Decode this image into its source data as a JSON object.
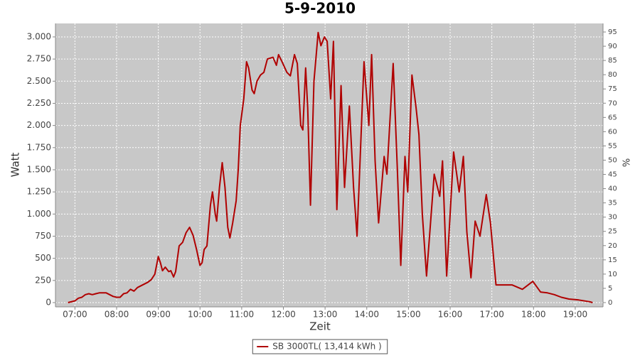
{
  "chart_data": {
    "type": "line",
    "title": "5-9-2010",
    "xlabel": "Zeit",
    "ylabel": "Watt",
    "y2label": "%",
    "plot_background": "#c8c8c8",
    "grid": true,
    "grid_color": "#ffffff",
    "legend": "bottom",
    "x": [
      "06:50",
      "07:00",
      "07:05",
      "07:10",
      "07:15",
      "07:20",
      "07:25",
      "07:30",
      "07:35",
      "07:45",
      "07:50",
      "07:55",
      "08:00",
      "08:05",
      "08:10",
      "08:15",
      "08:20",
      "08:25",
      "08:30",
      "08:35",
      "08:40",
      "08:45",
      "08:50",
      "08:55",
      "09:00",
      "09:03",
      "09:06",
      "09:10",
      "09:15",
      "09:18",
      "09:22",
      "09:25",
      "09:30",
      "09:35",
      "09:40",
      "09:45",
      "09:50",
      "09:55",
      "10:00",
      "10:03",
      "10:06",
      "10:10",
      "10:15",
      "10:18",
      "10:22",
      "10:24",
      "10:28",
      "10:32",
      "10:36",
      "10:40",
      "10:43",
      "10:47",
      "10:52",
      "10:55",
      "10:58",
      "11:03",
      "11:07",
      "11:10",
      "11:15",
      "11:18",
      "11:22",
      "11:27",
      "11:32",
      "11:37",
      "11:45",
      "11:50",
      "11:53",
      "11:58",
      "12:05",
      "12:10",
      "12:16",
      "12:20",
      "12:25",
      "12:28",
      "12:32",
      "12:35",
      "12:39",
      "12:44",
      "12:50",
      "12:54",
      "12:59",
      "13:03",
      "13:08",
      "13:12",
      "13:17",
      "13:23",
      "13:28",
      "13:35",
      "13:41",
      "13:46",
      "13:56",
      "14:03",
      "14:07",
      "14:12",
      "14:17",
      "14:25",
      "14:29",
      "14:38",
      "14:44",
      "14:49",
      "14:55",
      "14:59",
      "15:05",
      "15:11",
      "15:15",
      "15:20",
      "15:26",
      "15:37",
      "15:45",
      "15:49",
      "15:55",
      "16:05",
      "16:13",
      "16:19",
      "16:24",
      "16:30",
      "16:36",
      "16:43",
      "16:52",
      "16:58",
      "17:06",
      "17:15",
      "17:29",
      "17:44",
      "17:59",
      "18:10",
      "18:20",
      "18:30",
      "18:40",
      "18:51",
      "19:05",
      "19:21",
      "19:25"
    ],
    "xlim": [
      "06:32",
      "19:40"
    ],
    "xticks": [
      "07:00",
      "08:00",
      "09:00",
      "10:00",
      "11:00",
      "12:00",
      "13:00",
      "14:00",
      "15:00",
      "16:00",
      "17:00",
      "18:00",
      "19:00"
    ],
    "ylim": [
      -48,
      3152
    ],
    "yticks": [
      0,
      250,
      500,
      750,
      {
        "value": 1000,
        "label": "1.000"
      },
      {
        "value": 1250,
        "label": "1.250"
      },
      {
        "value": 1500,
        "label": "1.500"
      },
      {
        "value": 1750,
        "label": "1.750"
      },
      {
        "value": 2000,
        "label": "2.000"
      },
      {
        "value": 2250,
        "label": "2.250"
      },
      {
        "value": 2500,
        "label": "2.500"
      },
      {
        "value": 2750,
        "label": "2.750"
      },
      {
        "value": 3000,
        "label": "3.000"
      }
    ],
    "y2lim": [
      -1.5,
      98
    ],
    "y2ticks": [
      0,
      5,
      10,
      15,
      20,
      25,
      30,
      35,
      40,
      45,
      50,
      55,
      60,
      65,
      70,
      75,
      80,
      85,
      90,
      95
    ],
    "series": [
      {
        "name": "SB 3000TL( 13,414 kWh )",
        "color": "#b00000",
        "values": [
          0,
          20,
          50,
          60,
          90,
          100,
          90,
          100,
          110,
          110,
          90,
          70,
          60,
          60,
          100,
          110,
          150,
          130,
          170,
          190,
          210,
          230,
          260,
          320,
          520,
          450,
          360,
          400,
          350,
          360,
          290,
          350,
          640,
          680,
          790,
          850,
          760,
          600,
          420,
          450,
          600,
          640,
          1100,
          1250,
          1000,
          920,
          1300,
          1580,
          1300,
          850,
          730,
          900,
          1150,
          1500,
          2000,
          2300,
          2720,
          2650,
          2400,
          2360,
          2500,
          2570,
          2600,
          2750,
          2770,
          2680,
          2800,
          2720,
          2600,
          2560,
          2800,
          2700,
          2000,
          1950,
          2650,
          2200,
          1100,
          2500,
          3050,
          2900,
          3000,
          2950,
          2300,
          2950,
          1050,
          2450,
          1300,
          2220,
          1300,
          750,
          2720,
          2000,
          2800,
          1600,
          900,
          1650,
          1450,
          2700,
          1500,
          420,
          1650,
          1250,
          2570,
          2200,
          1900,
          1000,
          300,
          1450,
          1200,
          1600,
          300,
          1700,
          1250,
          1650,
          800,
          280,
          920,
          750,
          1220,
          900,
          200,
          200,
          200,
          150,
          240,
          120,
          110,
          90,
          60,
          40,
          30,
          10,
          0
        ]
      }
    ]
  }
}
